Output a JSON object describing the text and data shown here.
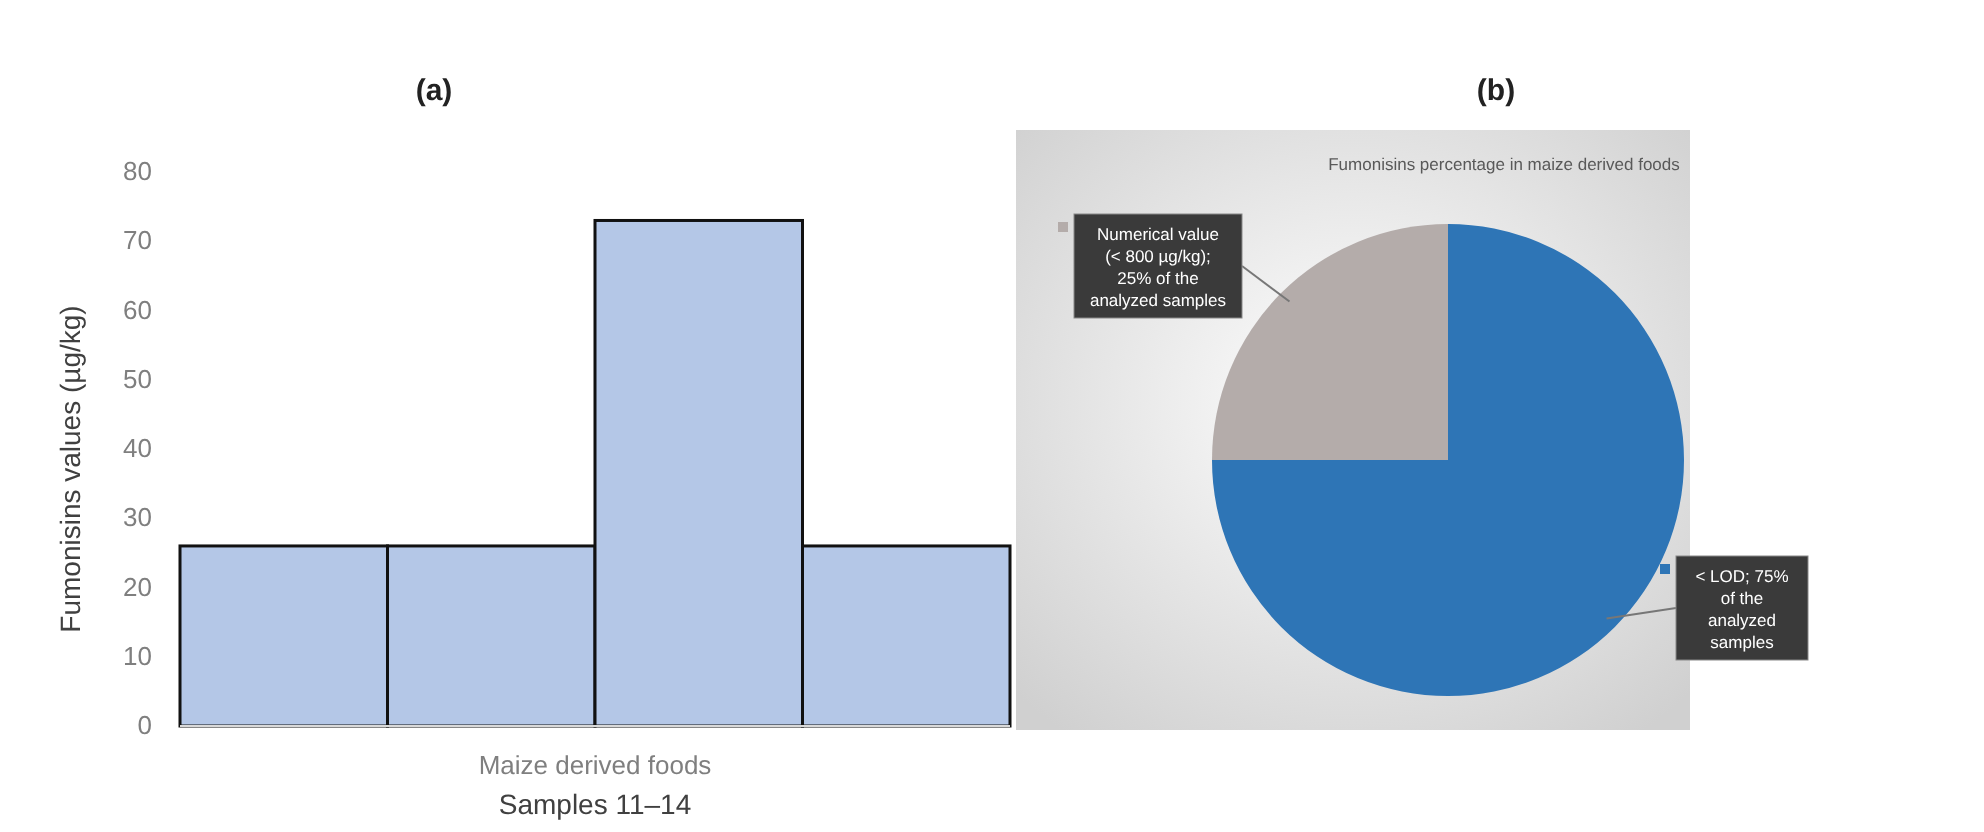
{
  "chart_data": [
    {
      "type": "bar",
      "title": "(a)",
      "xlabel": "Samples 11–14",
      "ylabel": "Fumonisins values (µg/kg)",
      "annotations": [
        "Maize derived foods"
      ],
      "categories": [
        null,
        null,
        null,
        null
      ],
      "values": [
        26,
        26,
        73,
        26
      ],
      "color": "#b4c7e7",
      "ylim": [
        0,
        80
      ],
      "yticks": [
        0,
        10,
        20,
        30,
        40,
        50,
        60,
        70,
        80
      ],
      "grid": false
    },
    {
      "type": "pie",
      "title": "(b)",
      "subtitle": "Fumonisins percentage in maize derived foods",
      "categories": [
        "< LOD; 75% of the analyzed samples",
        "Numerical value (< 800 µg/kg); 25% of the analyzed samples"
      ],
      "values": [
        75,
        25
      ],
      "colors": [
        "#2e75b6",
        "#b4acaa"
      ],
      "legend": "top left"
    }
  ]
}
